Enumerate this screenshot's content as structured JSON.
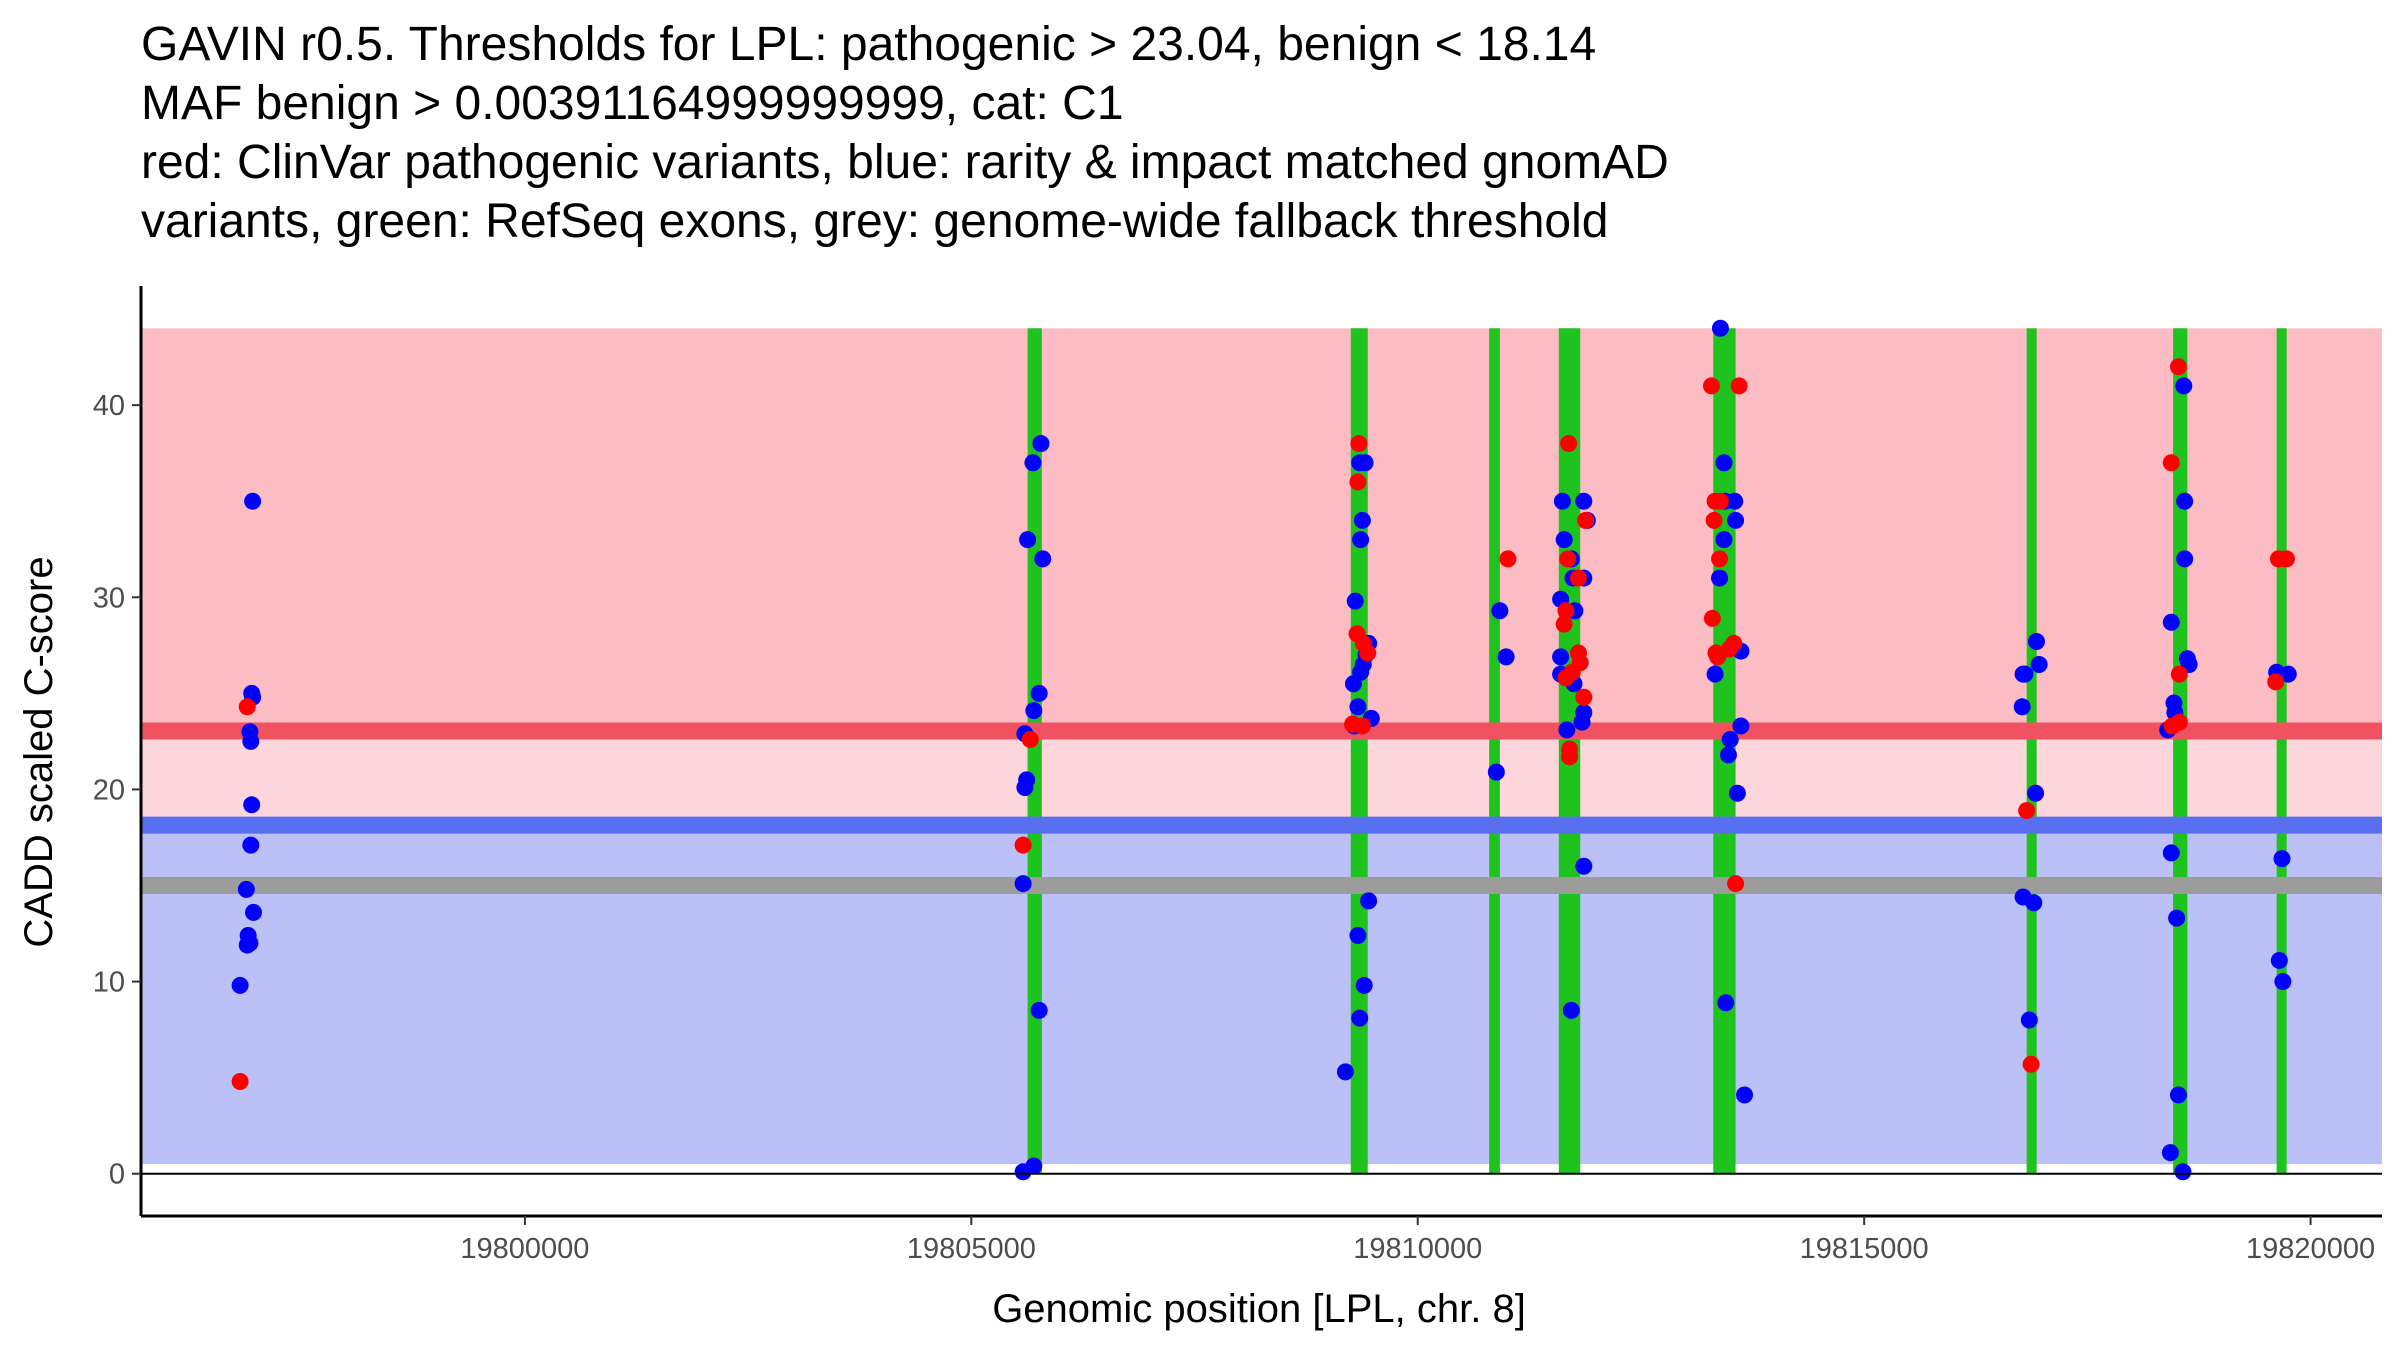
{
  "chart_data": {
    "type": "scatter",
    "title_lines": [
      "GAVIN r0.5. Thresholds for LPL: pathogenic > 23.04, benign < 18.14",
      "MAF benign > 0.00391164999999999, cat: C1",
      "red: ClinVar pathogenic variants, blue: rarity & impact matched gnomAD",
      "variants, green: RefSeq exons, grey: genome-wide fallback threshold"
    ],
    "xlabel": "Genomic position [LPL, chr. 8]",
    "ylabel": "CADD scaled C-score",
    "xlim": [
      19795700,
      19820800
    ],
    "ylim": [
      -2.2,
      46.2
    ],
    "x_ticks": [
      {
        "value": 19800000,
        "label": "19800000"
      },
      {
        "value": 19805000,
        "label": "19805000"
      },
      {
        "value": 19810000,
        "label": "19810000"
      },
      {
        "value": 19815000,
        "label": "19815000"
      },
      {
        "value": 19820000,
        "label": "19820000"
      }
    ],
    "y_ticks": [
      {
        "value": 0,
        "label": "0"
      },
      {
        "value": 10,
        "label": "10"
      },
      {
        "value": 20,
        "label": "20"
      },
      {
        "value": 30,
        "label": "30"
      },
      {
        "value": 40,
        "label": "40"
      }
    ],
    "colors": {
      "pathogenic_region": "#fcbcc4",
      "intermediate_region": "#fdd6dc",
      "benign_region": "#bbc0f7",
      "pathogenic_threshold": "#f05262",
      "benign_threshold": "#5870f0",
      "fallback_threshold": "#9c9c9c",
      "exon": "#1ec31e",
      "clinvar": "#ff0000",
      "gnomad": "#0000ff",
      "axis": "#000000"
    },
    "region_x_range": [
      19795700,
      19820800
    ],
    "regions": [
      {
        "name": "pathogenic",
        "y_range": [
          23.04,
          44
        ]
      },
      {
        "name": "intermediate",
        "y_range": [
          18.14,
          23.04
        ]
      },
      {
        "name": "benign",
        "y_range": [
          0.5,
          18.14
        ]
      }
    ],
    "thresholds": [
      {
        "name": "pathogenic",
        "value": 23.04
      },
      {
        "name": "benign",
        "value": 18.14
      },
      {
        "name": "fallback",
        "value": 15
      }
    ],
    "exons": [
      {
        "start": 19805630,
        "end": 19805790
      },
      {
        "start": 19809250,
        "end": 19809440
      },
      {
        "start": 19810800,
        "end": 19810920
      },
      {
        "start": 19811580,
        "end": 19811820
      },
      {
        "start": 19813310,
        "end": 19813560
      },
      {
        "start": 19816820,
        "end": 19816930
      },
      {
        "start": 19818460,
        "end": 19818620
      },
      {
        "start": 19819620,
        "end": 19819730
      }
    ],
    "exon_y_range": [
      0,
      44
    ],
    "series": [
      {
        "name": "gnomAD",
        "color_key": "gnomad",
        "points": [
          [
            19796950,
            35
          ],
          [
            19796920,
            23
          ],
          [
            19796930,
            22.5
          ],
          [
            19796950,
            24.8
          ],
          [
            19796940,
            25
          ],
          [
            19796940,
            19.2
          ],
          [
            19796930,
            17.1
          ],
          [
            19796880,
            14.8
          ],
          [
            19796960,
            13.6
          ],
          [
            19796900,
            12.4
          ],
          [
            19796890,
            11.9
          ],
          [
            19796920,
            12
          ],
          [
            19796810,
            9.8
          ],
          [
            19805580,
            15.1
          ],
          [
            19805600,
            20.1
          ],
          [
            19805620,
            20.5
          ],
          [
            19805600,
            22.9
          ],
          [
            19805700,
            24.1
          ],
          [
            19805760,
            25
          ],
          [
            19805630,
            33
          ],
          [
            19805690,
            37
          ],
          [
            19805780,
            38
          ],
          [
            19805800,
            32
          ],
          [
            19805760,
            8.5
          ],
          [
            19805580,
            0.1
          ],
          [
            19805700,
            0.4
          ],
          [
            19809350,
            37
          ],
          [
            19809410,
            37
          ],
          [
            19809380,
            34
          ],
          [
            19809360,
            33
          ],
          [
            19809300,
            29.8
          ],
          [
            19809450,
            27.6
          ],
          [
            19809420,
            27
          ],
          [
            19809390,
            26.5
          ],
          [
            19809360,
            26.1
          ],
          [
            19809280,
            25.5
          ],
          [
            19809330,
            24.3
          ],
          [
            19809480,
            23.7
          ],
          [
            19809290,
            23.3
          ],
          [
            19809450,
            14.2
          ],
          [
            19809330,
            12.4
          ],
          [
            19809400,
            9.8
          ],
          [
            19809350,
            8.1
          ],
          [
            19809190,
            5.3
          ],
          [
            19810920,
            29.3
          ],
          [
            19810990,
            26.9
          ],
          [
            19810880,
            20.9
          ],
          [
            19811620,
            35
          ],
          [
            19811860,
            35
          ],
          [
            19811900,
            34
          ],
          [
            19811640,
            33
          ],
          [
            19811720,
            32
          ],
          [
            19811740,
            31
          ],
          [
            19811860,
            31
          ],
          [
            19811600,
            29.9
          ],
          [
            19811760,
            29.3
          ],
          [
            19811600,
            26.9
          ],
          [
            19811600,
            26
          ],
          [
            19811750,
            25.5
          ],
          [
            19811860,
            24
          ],
          [
            19811840,
            23.5
          ],
          [
            19811670,
            23.1
          ],
          [
            19811860,
            16
          ],
          [
            19811720,
            8.5
          ],
          [
            19813390,
            44
          ],
          [
            19813430,
            37
          ],
          [
            19813440,
            35
          ],
          [
            19813550,
            35
          ],
          [
            19813560,
            34
          ],
          [
            19813430,
            33
          ],
          [
            19813380,
            31
          ],
          [
            19813620,
            27.2
          ],
          [
            19813330,
            26
          ],
          [
            19813620,
            23.3
          ],
          [
            19813500,
            22.6
          ],
          [
            19813480,
            21.8
          ],
          [
            19813580,
            19.8
          ],
          [
            19813450,
            8.9
          ],
          [
            19813660,
            4.1
          ],
          [
            19816780,
            26
          ],
          [
            19816800,
            26
          ],
          [
            19816930,
            27.7
          ],
          [
            19816960,
            26.5
          ],
          [
            19816770,
            24.3
          ],
          [
            19816920,
            19.8
          ],
          [
            19816780,
            14.4
          ],
          [
            19816900,
            14.1
          ],
          [
            19816850,
            8
          ],
          [
            19818440,
            28.7
          ],
          [
            19818620,
            26.8
          ],
          [
            19818640,
            26.5
          ],
          [
            19818470,
            24.5
          ],
          [
            19818480,
            24
          ],
          [
            19818400,
            23.1
          ],
          [
            19818440,
            16.7
          ],
          [
            19818500,
            13.3
          ],
          [
            19818580,
            41
          ],
          [
            19818590,
            35
          ],
          [
            19818590,
            32
          ],
          [
            19818520,
            4.1
          ],
          [
            19818430,
            1.1
          ],
          [
            19818570,
            0.1
          ],
          [
            19819620,
            26.1
          ],
          [
            19819750,
            26
          ],
          [
            19819680,
            16.4
          ],
          [
            19819650,
            11.1
          ],
          [
            19819690,
            10
          ]
        ]
      },
      {
        "name": "ClinVar",
        "color_key": "clinvar",
        "points": [
          [
            19796890,
            24.3
          ],
          [
            19796810,
            4.8
          ],
          [
            19805660,
            22.6
          ],
          [
            19805580,
            17.1
          ],
          [
            19809340,
            38
          ],
          [
            19809330,
            36
          ],
          [
            19809320,
            28.1
          ],
          [
            19809390,
            27.6
          ],
          [
            19809440,
            27.1
          ],
          [
            19809270,
            23.4
          ],
          [
            19809380,
            23.3
          ],
          [
            19811010,
            32
          ],
          [
            19811690,
            38
          ],
          [
            19811880,
            34
          ],
          [
            19811680,
            32
          ],
          [
            19811800,
            31
          ],
          [
            19811660,
            29.3
          ],
          [
            19811640,
            28.6
          ],
          [
            19811800,
            27.1
          ],
          [
            19811820,
            26.6
          ],
          [
            19811730,
            26.1
          ],
          [
            19811660,
            25.8
          ],
          [
            19811860,
            24.8
          ],
          [
            19811700,
            22.1
          ],
          [
            19811700,
            21.7
          ],
          [
            19813290,
            41
          ],
          [
            19813600,
            41
          ],
          [
            19813330,
            35
          ],
          [
            19813390,
            35
          ],
          [
            19813320,
            34
          ],
          [
            19813380,
            32
          ],
          [
            19813300,
            28.9
          ],
          [
            19813540,
            27.6
          ],
          [
            19813490,
            27.3
          ],
          [
            19813340,
            27.1
          ],
          [
            19813360,
            26.9
          ],
          [
            19813560,
            15.1
          ],
          [
            19816820,
            18.9
          ],
          [
            19816870,
            5.7
          ],
          [
            19818520,
            42
          ],
          [
            19818440,
            37
          ],
          [
            19818530,
            26
          ],
          [
            19818530,
            23.5
          ],
          [
            19818450,
            23.3
          ],
          [
            19819640,
            32
          ],
          [
            19819730,
            32
          ],
          [
            19819610,
            25.6
          ]
        ]
      }
    ]
  }
}
